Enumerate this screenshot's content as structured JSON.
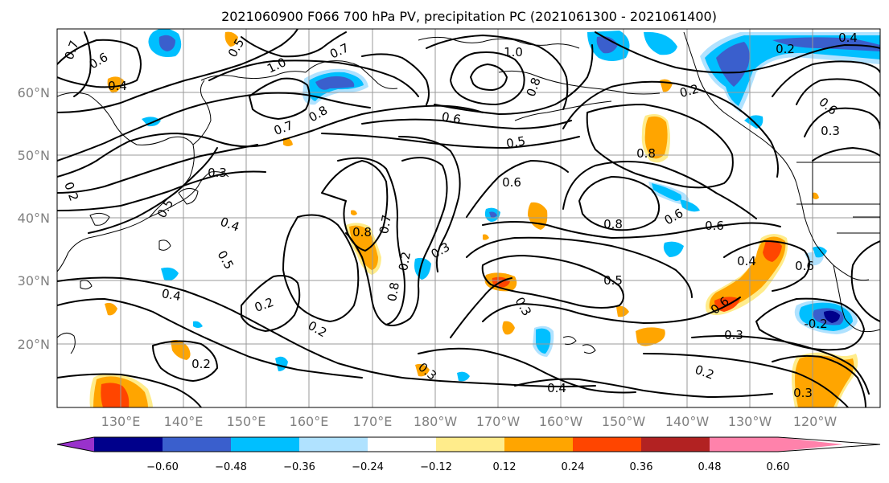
{
  "title": "2021060900 F066 700 hPa PV, precipitation PC (2021061300 - 2021061400)",
  "lat_labels": [
    "60°N",
    "50°N",
    "40°N",
    "30°N",
    "20°N"
  ],
  "lon_labels": [
    "130°E",
    "140°E",
    "150°E",
    "160°E",
    "170°E",
    "180°W",
    "170°W",
    "160°W",
    "150°W",
    "140°W",
    "130°W",
    "120°W"
  ],
  "colorbar": {
    "tick_labels": [
      "−0.60",
      "−0.48",
      "−0.36",
      "−0.24",
      "−0.12",
      "0.12",
      "0.24",
      "0.36",
      "0.48",
      "0.60"
    ],
    "colors": [
      "#9932cc",
      "#00008b",
      "#3a5fcd",
      "#00bfff",
      "#b0e2ff",
      "#ffffff",
      "#ffec8b",
      "#ffa500",
      "#ff4500",
      "#b22222",
      "#ff82ab"
    ]
  },
  "contour_labels": [
    {
      "text": "0.7"
    },
    {
      "text": "0.6"
    },
    {
      "text": "0.4"
    },
    {
      "text": "0.5"
    },
    {
      "text": "0.7"
    },
    {
      "text": "1.0"
    },
    {
      "text": "1.0"
    },
    {
      "text": "0.8"
    },
    {
      "text": "0.2"
    },
    {
      "text": "0.4"
    },
    {
      "text": "0.2"
    },
    {
      "text": "0.6"
    },
    {
      "text": "0.8"
    },
    {
      "text": "0.6"
    },
    {
      "text": "0.5"
    },
    {
      "text": "0.7"
    },
    {
      "text": "0.3"
    },
    {
      "text": "0.8"
    },
    {
      "text": "0.3"
    },
    {
      "text": "0.2"
    },
    {
      "text": "0.4"
    },
    {
      "text": "0.5"
    },
    {
      "text": "0.6"
    },
    {
      "text": "0.8"
    },
    {
      "text": "0.6"
    },
    {
      "text": "0.6"
    },
    {
      "text": "0.8"
    },
    {
      "text": "0.7"
    },
    {
      "text": "0.3"
    },
    {
      "text": "0.5"
    },
    {
      "text": "0.4"
    },
    {
      "text": "0.5"
    },
    {
      "text": "0.2"
    },
    {
      "text": "0.8"
    },
    {
      "text": "0.3"
    },
    {
      "text": "0.4"
    },
    {
      "text": "0.6"
    },
    {
      "text": "0.6"
    },
    {
      "text": "-0.2"
    },
    {
      "text": "0.3"
    },
    {
      "text": "0.2"
    },
    {
      "text": "0.2"
    },
    {
      "text": "0.4"
    },
    {
      "text": "0.2"
    },
    {
      "text": "0.3"
    },
    {
      "text": "0.3"
    },
    {
      "text": "0.2"
    }
  ],
  "colors": {
    "contour": "#000000",
    "grid": "#9a9a9a",
    "axis_label": "#808080"
  }
}
